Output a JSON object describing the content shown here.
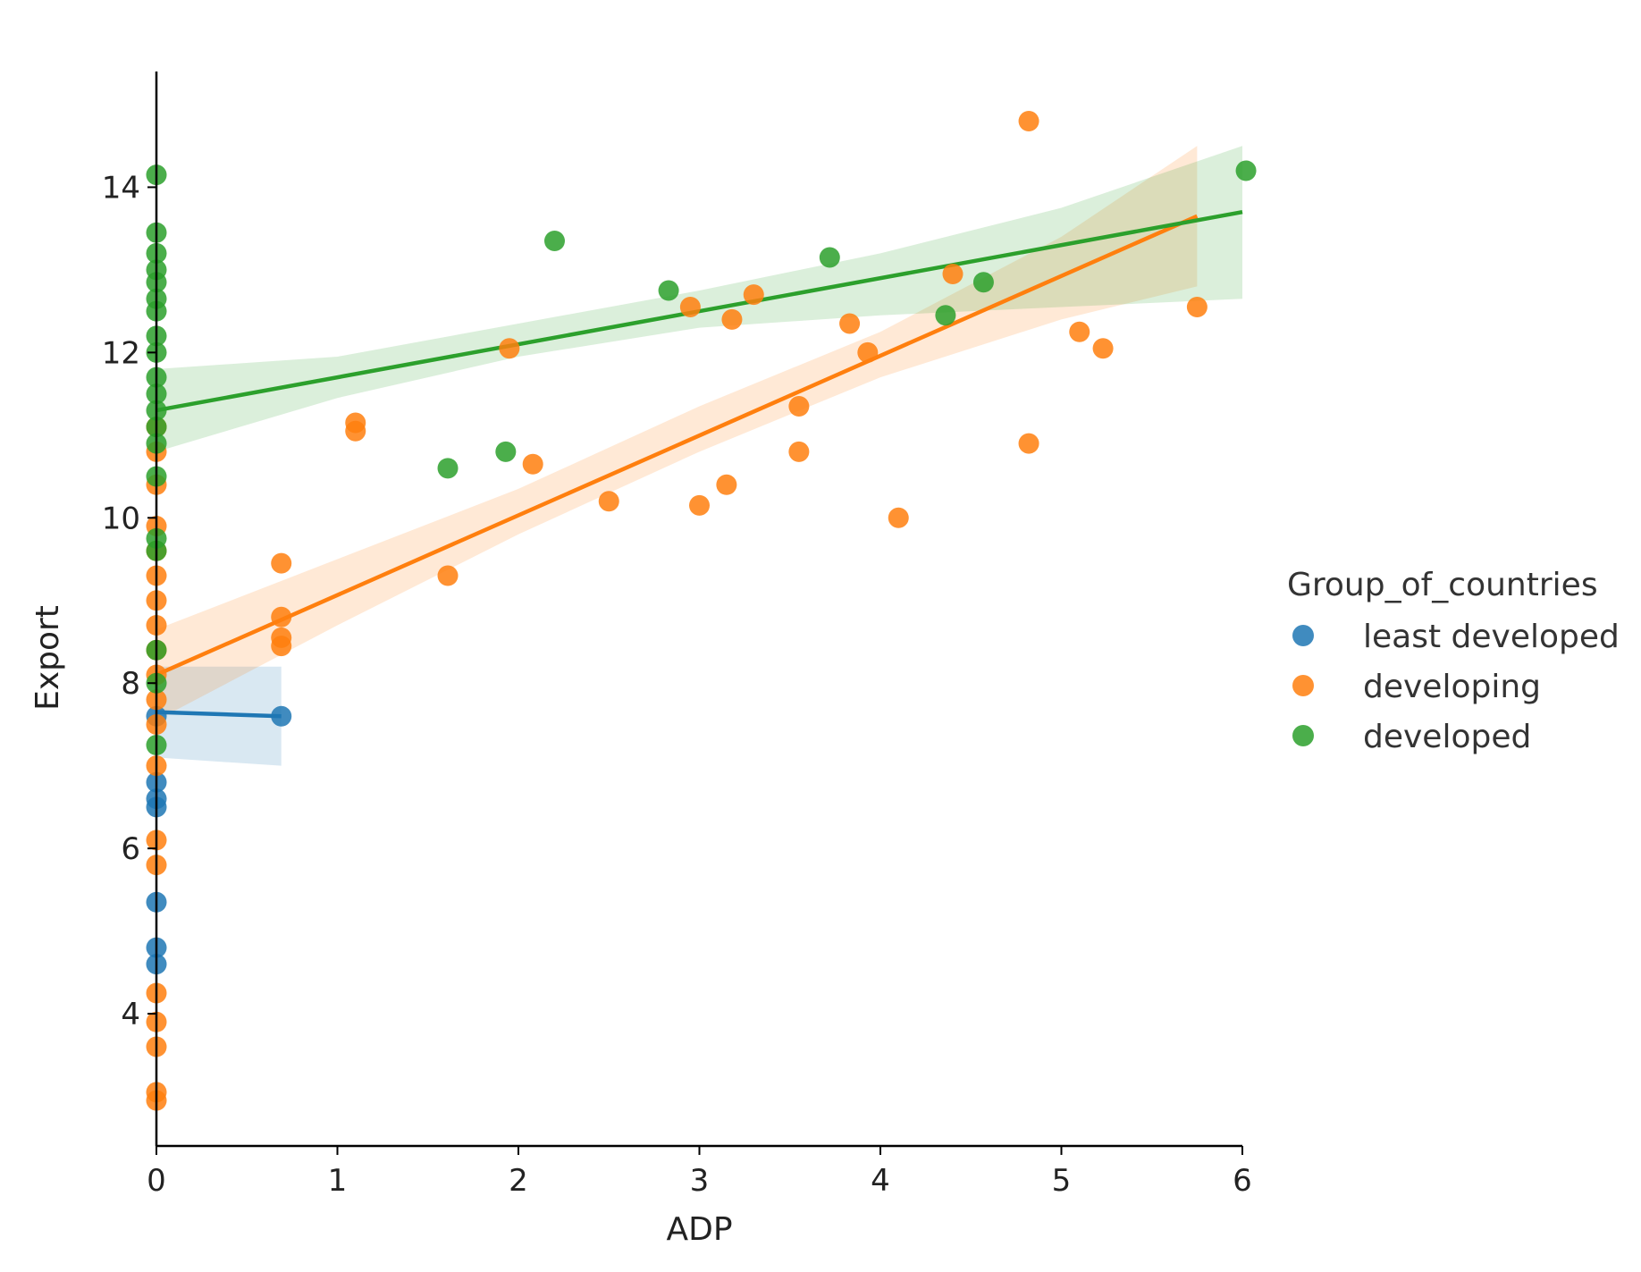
{
  "chart_data": {
    "type": "scatter",
    "title": "",
    "xlabel": "ADP",
    "ylabel": "Export",
    "xlim": [
      0,
      6
    ],
    "ylim": [
      2.4,
      15.4
    ],
    "xticks": [
      0,
      1,
      2,
      3,
      4,
      5,
      6
    ],
    "yticks": [
      4,
      6,
      8,
      10,
      12,
      14
    ],
    "grid": false,
    "legend": {
      "title": "Group_of_countries",
      "position": "right"
    },
    "series": [
      {
        "name": "least developed",
        "color": "#1f77b4",
        "points": [
          {
            "x": 0,
            "y": 7.6
          },
          {
            "x": 0,
            "y": 6.8
          },
          {
            "x": 0,
            "y": 6.6
          },
          {
            "x": 0,
            "y": 6.5
          },
          {
            "x": 0,
            "y": 5.35
          },
          {
            "x": 0,
            "y": 4.8
          },
          {
            "x": 0,
            "y": 4.6
          },
          {
            "x": 0.69,
            "y": 7.6
          }
        ],
        "fit": {
          "x": [
            0,
            0.69
          ],
          "y": [
            7.65,
            7.6
          ]
        },
        "ci": {
          "x": [
            0,
            0.69
          ],
          "lower": [
            7.1,
            7.0
          ],
          "upper": [
            8.2,
            8.2
          ]
        }
      },
      {
        "name": "developing",
        "color": "#ff7f0e",
        "points": [
          {
            "x": 0,
            "y": 11.1
          },
          {
            "x": 0,
            "y": 10.8
          },
          {
            "x": 0,
            "y": 10.4
          },
          {
            "x": 0,
            "y": 9.9
          },
          {
            "x": 0,
            "y": 9.6
          },
          {
            "x": 0,
            "y": 9.3
          },
          {
            "x": 0,
            "y": 9.0
          },
          {
            "x": 0,
            "y": 8.7
          },
          {
            "x": 0,
            "y": 8.4
          },
          {
            "x": 0,
            "y": 8.1
          },
          {
            "x": 0,
            "y": 7.8
          },
          {
            "x": 0,
            "y": 7.5
          },
          {
            "x": 0,
            "y": 7.0
          },
          {
            "x": 0,
            "y": 6.1
          },
          {
            "x": 0,
            "y": 5.8
          },
          {
            "x": 0,
            "y": 4.25
          },
          {
            "x": 0,
            "y": 3.9
          },
          {
            "x": 0,
            "y": 3.6
          },
          {
            "x": 0,
            "y": 3.05
          },
          {
            "x": 0,
            "y": 2.95
          },
          {
            "x": 0.69,
            "y": 9.45
          },
          {
            "x": 0.69,
            "y": 8.8
          },
          {
            "x": 0.69,
            "y": 8.55
          },
          {
            "x": 0.69,
            "y": 8.45
          },
          {
            "x": 1.1,
            "y": 11.15
          },
          {
            "x": 1.1,
            "y": 11.05
          },
          {
            "x": 1.61,
            "y": 9.3
          },
          {
            "x": 1.95,
            "y": 12.05
          },
          {
            "x": 2.08,
            "y": 10.65
          },
          {
            "x": 2.5,
            "y": 10.2
          },
          {
            "x": 2.95,
            "y": 12.55
          },
          {
            "x": 3.0,
            "y": 10.15
          },
          {
            "x": 3.15,
            "y": 10.4
          },
          {
            "x": 3.18,
            "y": 12.4
          },
          {
            "x": 3.3,
            "y": 12.7
          },
          {
            "x": 3.55,
            "y": 11.35
          },
          {
            "x": 3.55,
            "y": 10.8
          },
          {
            "x": 3.83,
            "y": 12.35
          },
          {
            "x": 3.93,
            "y": 12.0
          },
          {
            "x": 4.1,
            "y": 10.0
          },
          {
            "x": 4.4,
            "y": 12.95
          },
          {
            "x": 4.82,
            "y": 14.8
          },
          {
            "x": 4.82,
            "y": 10.9
          },
          {
            "x": 5.1,
            "y": 12.25
          },
          {
            "x": 5.23,
            "y": 12.05
          },
          {
            "x": 5.75,
            "y": 12.55
          }
        ],
        "fit": {
          "x": [
            0,
            5.75
          ],
          "y": [
            8.1,
            13.65
          ]
        },
        "ci": {
          "x": [
            0,
            1,
            2,
            3,
            4,
            5,
            5.75
          ],
          "lower": [
            7.55,
            8.7,
            9.8,
            10.8,
            11.7,
            12.4,
            12.8
          ],
          "upper": [
            8.65,
            9.5,
            10.35,
            11.35,
            12.25,
            13.4,
            14.5
          ]
        }
      },
      {
        "name": "developed",
        "color": "#2ca02c",
        "points": [
          {
            "x": 0,
            "y": 14.15
          },
          {
            "x": 0,
            "y": 13.45
          },
          {
            "x": 0,
            "y": 13.2
          },
          {
            "x": 0,
            "y": 13.0
          },
          {
            "x": 0,
            "y": 12.85
          },
          {
            "x": 0,
            "y": 12.65
          },
          {
            "x": 0,
            "y": 12.5
          },
          {
            "x": 0,
            "y": 12.2
          },
          {
            "x": 0,
            "y": 12.0
          },
          {
            "x": 0,
            "y": 11.7
          },
          {
            "x": 0,
            "y": 11.5
          },
          {
            "x": 0,
            "y": 11.3
          },
          {
            "x": 0,
            "y": 11.1
          },
          {
            "x": 0,
            "y": 10.9
          },
          {
            "x": 0,
            "y": 10.5
          },
          {
            "x": 0,
            "y": 9.75
          },
          {
            "x": 0,
            "y": 9.6
          },
          {
            "x": 0,
            "y": 8.4
          },
          {
            "x": 0,
            "y": 8.0
          },
          {
            "x": 0,
            "y": 7.25
          },
          {
            "x": 1.61,
            "y": 10.6
          },
          {
            "x": 1.93,
            "y": 10.8
          },
          {
            "x": 2.2,
            "y": 13.35
          },
          {
            "x": 2.83,
            "y": 12.75
          },
          {
            "x": 3.72,
            "y": 13.15
          },
          {
            "x": 4.36,
            "y": 12.45
          },
          {
            "x": 4.57,
            "y": 12.85
          },
          {
            "x": 6.02,
            "y": 14.2
          }
        ],
        "fit": {
          "x": [
            0,
            6
          ],
          "y": [
            11.3,
            13.7
          ]
        },
        "ci": {
          "x": [
            0,
            1,
            2,
            3,
            4,
            5,
            6
          ],
          "lower": [
            10.8,
            11.45,
            11.95,
            12.3,
            12.45,
            12.55,
            12.65
          ],
          "upper": [
            11.8,
            11.95,
            12.35,
            12.75,
            13.2,
            13.75,
            14.5
          ]
        }
      }
    ]
  }
}
